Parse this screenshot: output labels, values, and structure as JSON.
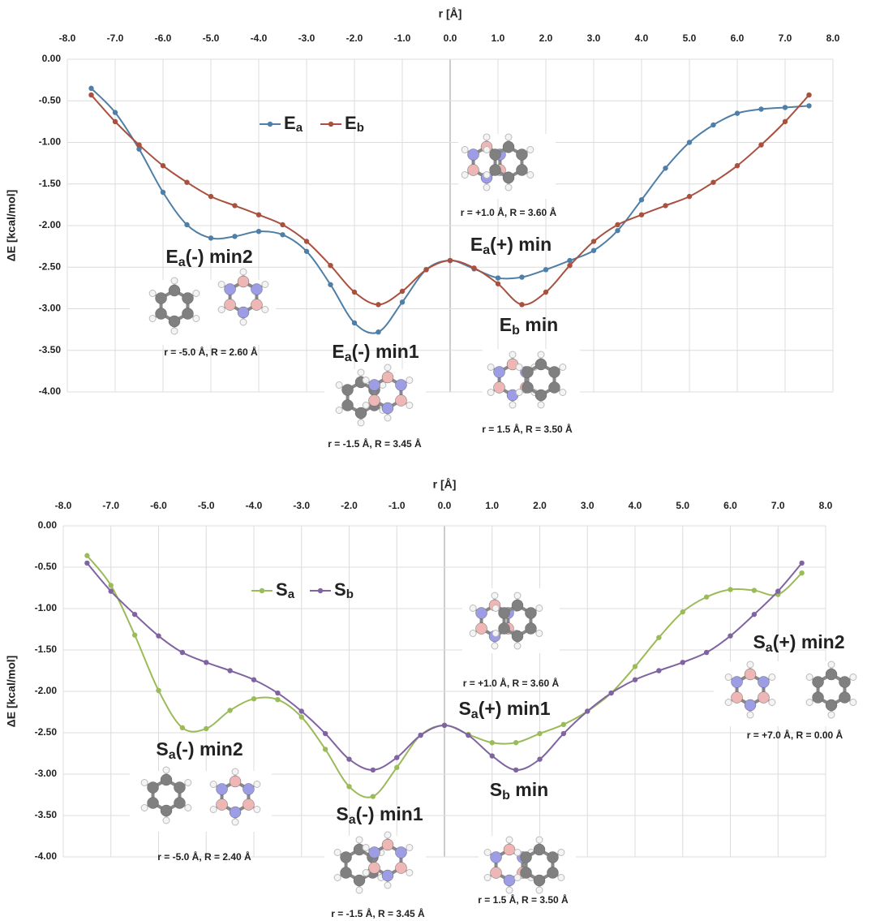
{
  "chart_data": [
    {
      "type": "line",
      "xlabel": "r [Å]",
      "ylabel": "ΔE [kcal/mol]",
      "x": [
        -7.5,
        -7,
        -6.5,
        -6,
        -5.5,
        -5,
        -4.5,
        -4,
        -3.5,
        -3,
        -2.5,
        -2,
        -1.5,
        -1,
        -0.5,
        0,
        0.5,
        1,
        1.5,
        2,
        2.5,
        3,
        3.5,
        4,
        4.5,
        5,
        5.5,
        6,
        6.5,
        7,
        7.5
      ],
      "series": [
        {
          "name": [
            "E",
            "a"
          ],
          "color": "#4f7fa6",
          "values": [
            -0.35,
            -0.64,
            -1.08,
            -1.6,
            -1.99,
            -2.15,
            -2.13,
            -2.07,
            -2.11,
            -2.31,
            -2.71,
            -3.17,
            -3.28,
            -2.92,
            -2.53,
            -2.42,
            -2.52,
            -2.63,
            -2.62,
            -2.53,
            -2.42,
            -2.3,
            -2.06,
            -1.69,
            -1.31,
            -1.0,
            -0.79,
            -0.65,
            -0.6,
            -0.58,
            -0.56
          ]
        },
        {
          "name": [
            "E",
            "b"
          ],
          "color": "#a9503f",
          "values": [
            -0.43,
            -0.75,
            -1.03,
            -1.28,
            -1.48,
            -1.65,
            -1.76,
            -1.87,
            -1.99,
            -2.19,
            -2.48,
            -2.8,
            -2.95,
            -2.79,
            -2.53,
            -2.42,
            -2.51,
            -2.7,
            -2.95,
            -2.8,
            -2.48,
            -2.19,
            -1.99,
            -1.87,
            -1.76,
            -1.65,
            -1.48,
            -1.28,
            -1.03,
            -0.75,
            -0.43
          ]
        }
      ],
      "xlim": [
        -8,
        8
      ],
      "xticks": [
        {
          "value": -8,
          "label": "-8.0"
        },
        {
          "value": -7,
          "label": "-7.0"
        },
        {
          "value": -6,
          "label": "-6.0"
        },
        {
          "value": -5,
          "label": "-5.0"
        },
        {
          "value": -4,
          "label": "-4.0"
        },
        {
          "value": -3,
          "label": "-3.0"
        },
        {
          "value": -2,
          "label": "-2.0"
        },
        {
          "value": -1,
          "label": "-1.0"
        },
        {
          "value": 0,
          "label": "0.0"
        },
        {
          "value": 1,
          "label": "1.0"
        },
        {
          "value": 2,
          "label": "2.0"
        },
        {
          "value": 3,
          "label": "3.0"
        },
        {
          "value": 4,
          "label": "4.0"
        },
        {
          "value": 5,
          "label": "5.0"
        },
        {
          "value": 6,
          "label": "6.0"
        },
        {
          "value": 7,
          "label": "7.0"
        },
        {
          "value": 8,
          "label": "8.0"
        }
      ],
      "ylim": [
        -4,
        0
      ],
      "yticks": [
        {
          "value": 0,
          "label": "0.00"
        },
        {
          "value": -0.5,
          "label": "-0.50"
        },
        {
          "value": -1,
          "label": "-1.00"
        },
        {
          "value": -1.5,
          "label": "-1.50"
        },
        {
          "value": -2,
          "label": "-2.00"
        },
        {
          "value": -2.5,
          "label": "-2.50"
        },
        {
          "value": -3,
          "label": "-3.00"
        },
        {
          "value": -3.5,
          "label": "-3.50"
        },
        {
          "value": -4,
          "label": "-4.00"
        }
      ],
      "grid": true,
      "annotations": [
        {
          "text": [
            "E",
            "a",
            "(-) min2"
          ],
          "caption": "r = -5.0 Å, R = 2.60 Å"
        },
        {
          "text": [
            "E",
            "a",
            "(-) min1"
          ],
          "caption": "r = -1.5 Å, R = 3.45 Å"
        },
        {
          "text": [
            "E",
            "a",
            "(+) min"
          ],
          "caption": "r = +1.0 Å, R = 3.60 Å"
        },
        {
          "text": [
            "E",
            "b",
            " min"
          ],
          "caption": "r = 1.5 Å, R = 3.50 Å"
        }
      ]
    },
    {
      "type": "line",
      "xlabel": "r [Å]",
      "ylabel": "ΔE [kcal/mol]",
      "x": [
        -7.5,
        -7,
        -6.5,
        -6,
        -5.5,
        -5,
        -4.5,
        -4,
        -3.5,
        -3,
        -2.5,
        -2,
        -1.5,
        -1,
        -0.5,
        0,
        0.5,
        1,
        1.5,
        2,
        2.5,
        3,
        3.5,
        4,
        4.5,
        5,
        5.5,
        6,
        6.5,
        7,
        7.5
      ],
      "series": [
        {
          "name": [
            "S",
            "a"
          ],
          "color": "#9bbb59",
          "values": [
            -0.36,
            -0.72,
            -1.32,
            -1.99,
            -2.44,
            -2.45,
            -2.23,
            -2.09,
            -2.1,
            -2.31,
            -2.7,
            -3.15,
            -3.27,
            -2.92,
            -2.53,
            -2.41,
            -2.52,
            -2.62,
            -2.62,
            -2.51,
            -2.4,
            -2.24,
            -2.02,
            -1.7,
            -1.35,
            -1.04,
            -0.86,
            -0.77,
            -0.78,
            -0.83,
            -0.57
          ]
        },
        {
          "name": [
            "S",
            "b"
          ],
          "color": "#8064a2",
          "values": [
            -0.45,
            -0.79,
            -1.07,
            -1.33,
            -1.53,
            -1.65,
            -1.75,
            -1.86,
            -2.02,
            -2.24,
            -2.51,
            -2.82,
            -2.95,
            -2.8,
            -2.53,
            -2.41,
            -2.53,
            -2.78,
            -2.95,
            -2.82,
            -2.51,
            -2.24,
            -2.02,
            -1.86,
            -1.75,
            -1.65,
            -1.53,
            -1.33,
            -1.07,
            -0.79,
            -0.45
          ]
        }
      ],
      "xlim": [
        -8,
        8
      ],
      "xticks": [
        {
          "value": -8,
          "label": "-8.0"
        },
        {
          "value": -7,
          "label": "-7.0"
        },
        {
          "value": -6,
          "label": "-6.0"
        },
        {
          "value": -5,
          "label": "-5.0"
        },
        {
          "value": -4,
          "label": "-4.0"
        },
        {
          "value": -3,
          "label": "-3.0"
        },
        {
          "value": -2,
          "label": "-2.0"
        },
        {
          "value": -1,
          "label": "-1.0"
        },
        {
          "value": 0,
          "label": "0.0"
        },
        {
          "value": 1,
          "label": "1.0"
        },
        {
          "value": 2,
          "label": "2.0"
        },
        {
          "value": 3,
          "label": "3.0"
        },
        {
          "value": 4,
          "label": "4.0"
        },
        {
          "value": 5,
          "label": "5.0"
        },
        {
          "value": 6,
          "label": "6.0"
        },
        {
          "value": 7,
          "label": "7.0"
        },
        {
          "value": 8,
          "label": "8.0"
        }
      ],
      "ylim": [
        -4,
        0
      ],
      "yticks": [
        {
          "value": 0,
          "label": "0.00"
        },
        {
          "value": -0.5,
          "label": "-0.50"
        },
        {
          "value": -1,
          "label": "-1.00"
        },
        {
          "value": -1.5,
          "label": "-1.50"
        },
        {
          "value": -2,
          "label": "-2.00"
        },
        {
          "value": -2.5,
          "label": "-2.50"
        },
        {
          "value": -3,
          "label": "-3.00"
        },
        {
          "value": -3.5,
          "label": "-3.50"
        },
        {
          "value": -4,
          "label": "-4.00"
        }
      ],
      "grid": true,
      "annotations": [
        {
          "text": [
            "S",
            "a",
            "(-) min2"
          ],
          "caption": "r = -5.0 Å, R = 2.40 Å"
        },
        {
          "text": [
            "S",
            "a",
            "(-) min1"
          ],
          "caption": "r = -1.5 Å, R = 3.45 Å"
        },
        {
          "text": [
            "S",
            "a",
            "(+) min1"
          ],
          "caption": "r = +1.0 Å, R = 3.60 Å"
        },
        {
          "text": [
            "S",
            "b",
            " min"
          ],
          "caption": "r = 1.5 Å, R = 3.50 Å"
        },
        {
          "text": [
            "S",
            "a",
            "(+) min2"
          ],
          "caption": "r = +7.0 Å, R = 0.00 Å"
        }
      ]
    }
  ]
}
